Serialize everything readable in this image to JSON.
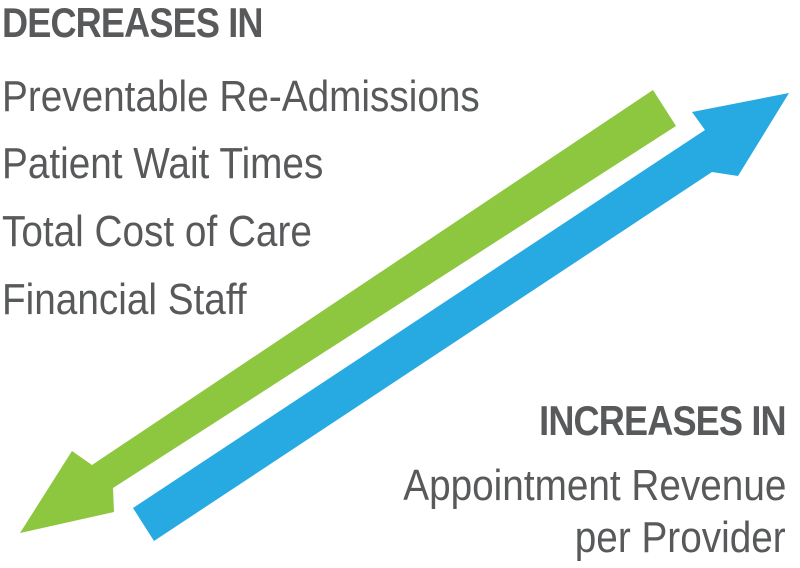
{
  "colors": {
    "text": "#58595b",
    "decrease_arrow": "#8dc63f",
    "increase_arrow": "#27aae1"
  },
  "icons": {
    "decrease_arrow": "arrow-down-left-icon",
    "increase_arrow": "arrow-up-right-icon"
  },
  "decreases": {
    "heading": "DECREASES IN",
    "items": [
      "Preventable Re-Admissions",
      "Patient Wait Times",
      "Total Cost of Care",
      "Financial Staff"
    ]
  },
  "increases": {
    "heading": "INCREASES IN",
    "lines": [
      "Appointment Revenue",
      "per Provider"
    ]
  }
}
